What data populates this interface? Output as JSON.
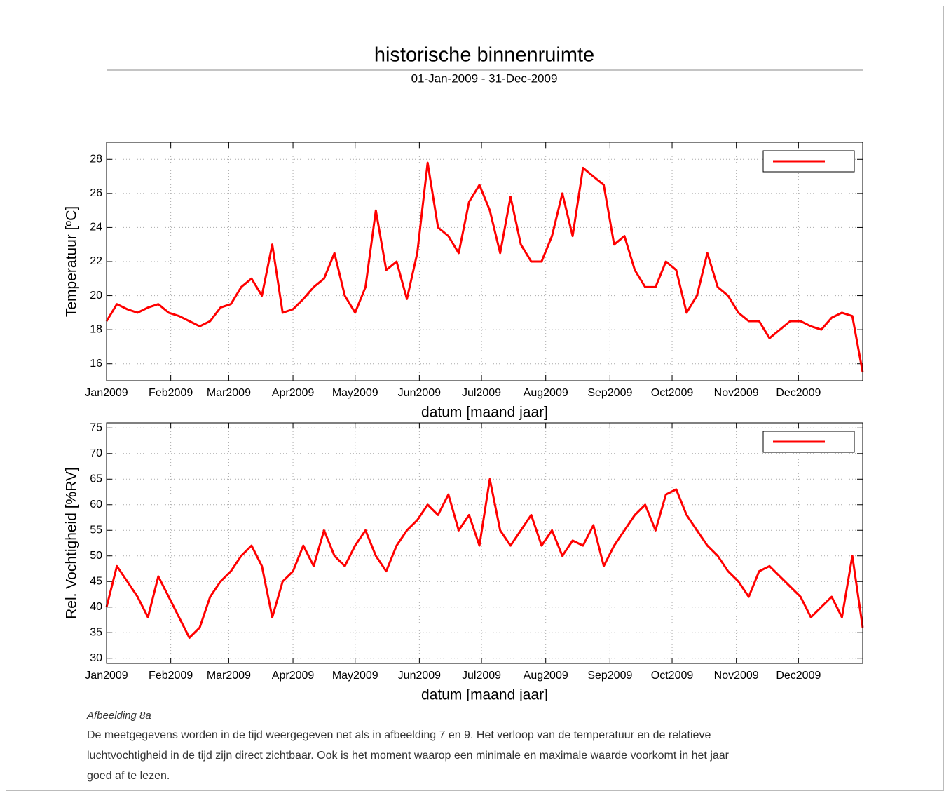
{
  "header": {
    "title": "historische binnenruimte",
    "subtitle": "01-Jan-2009 - 31-Dec-2009"
  },
  "caption": {
    "label": "Afbeelding 8a",
    "lines": [
      "De meetgegevens worden in de tijd weergegeven net als in afbeelding 7 en 9. Het verloop van de temperatuur en de relatieve",
      "luchtvochtigheid in de tijd zijn direct zichtbaar. Ook is het moment waarop een minimale en maximale waarde voorkomt in het jaar",
      "goed af te lezen."
    ]
  },
  "chart_data": [
    {
      "type": "line",
      "xlabel": "datum [maand jaar]",
      "ylabel": "Temperatuur [ºC]",
      "grid": true,
      "legend": "upper right",
      "xlim": [
        1,
        366
      ],
      "xticks": [
        {
          "value": 1,
          "label": "Jan2009"
        },
        {
          "value": 32,
          "label": "Feb2009"
        },
        {
          "value": 60,
          "label": "Mar2009"
        },
        {
          "value": 91,
          "label": "Apr2009"
        },
        {
          "value": 121,
          "label": "May2009"
        },
        {
          "value": 152,
          "label": "Jun2009"
        },
        {
          "value": 182,
          "label": "Jul2009"
        },
        {
          "value": 213,
          "label": "Aug2009"
        },
        {
          "value": 244,
          "label": "Sep2009"
        },
        {
          "value": 274,
          "label": "Oct2009"
        },
        {
          "value": 305,
          "label": "Nov2009"
        },
        {
          "value": 335,
          "label": "Dec2009"
        }
      ],
      "ylim": [
        15,
        29
      ],
      "yticks": [
        16,
        18,
        20,
        22,
        24,
        26,
        28
      ],
      "x": [
        1,
        6,
        11,
        16,
        21,
        26,
        31,
        36,
        41,
        46,
        51,
        56,
        61,
        66,
        71,
        76,
        81,
        86,
        91,
        96,
        101,
        106,
        111,
        116,
        121,
        126,
        131,
        136,
        141,
        146,
        151,
        156,
        161,
        166,
        171,
        176,
        181,
        186,
        191,
        196,
        201,
        206,
        211,
        216,
        221,
        226,
        231,
        236,
        241,
        246,
        251,
        256,
        261,
        266,
        271,
        276,
        281,
        286,
        291,
        296,
        301,
        306,
        311,
        316,
        321,
        326,
        331,
        336,
        341,
        346,
        351,
        356,
        361,
        366
      ],
      "series": [
        {
          "color": "#ff0000",
          "values": [
            18.5,
            19.5,
            19.2,
            19,
            19.3,
            19.5,
            19,
            18.8,
            18.5,
            18.2,
            18.5,
            19.3,
            19.5,
            20.5,
            21,
            20,
            23,
            19,
            19.2,
            19.8,
            20.5,
            21,
            22.5,
            20,
            19,
            20.5,
            25,
            21.5,
            22,
            19.8,
            22.5,
            27.8,
            24,
            23.5,
            22.5,
            25.5,
            26.5,
            25,
            22.5,
            25.8,
            23,
            22,
            22,
            23.5,
            26,
            23.5,
            27.5,
            27,
            26.5,
            23,
            23.5,
            21.5,
            20.5,
            20.5,
            22,
            21.5,
            19,
            20,
            22.5,
            20.5,
            20,
            19,
            18.5,
            18.5,
            17.5,
            18,
            18.5,
            18.5,
            18.2,
            18,
            18.7,
            19,
            18.8,
            15.5
          ]
        }
      ]
    },
    {
      "type": "line",
      "xlabel": "datum [maand jaar]",
      "ylabel": "Rel. Vochtigheid [%RV]",
      "grid": true,
      "legend": "upper right",
      "xlim": [
        1,
        366
      ],
      "xticks": [
        {
          "value": 1,
          "label": "Jan2009"
        },
        {
          "value": 32,
          "label": "Feb2009"
        },
        {
          "value": 60,
          "label": "Mar2009"
        },
        {
          "value": 91,
          "label": "Apr2009"
        },
        {
          "value": 121,
          "label": "May2009"
        },
        {
          "value": 152,
          "label": "Jun2009"
        },
        {
          "value": 182,
          "label": "Jul2009"
        },
        {
          "value": 213,
          "label": "Aug2009"
        },
        {
          "value": 244,
          "label": "Sep2009"
        },
        {
          "value": 274,
          "label": "Oct2009"
        },
        {
          "value": 305,
          "label": "Nov2009"
        },
        {
          "value": 335,
          "label": "Dec2009"
        }
      ],
      "ylim": [
        29,
        76
      ],
      "yticks": [
        30,
        35,
        40,
        45,
        50,
        55,
        60,
        65,
        70,
        75
      ],
      "x": [
        1,
        6,
        11,
        16,
        21,
        26,
        31,
        36,
        41,
        46,
        51,
        56,
        61,
        66,
        71,
        76,
        81,
        86,
        91,
        96,
        101,
        106,
        111,
        116,
        121,
        126,
        131,
        136,
        141,
        146,
        151,
        156,
        161,
        166,
        171,
        176,
        181,
        186,
        191,
        196,
        201,
        206,
        211,
        216,
        221,
        226,
        231,
        236,
        241,
        246,
        251,
        256,
        261,
        266,
        271,
        276,
        281,
        286,
        291,
        296,
        301,
        306,
        311,
        316,
        321,
        326,
        331,
        336,
        341,
        346,
        351,
        356,
        361,
        366
      ],
      "series": [
        {
          "color": "#ff0000",
          "values": [
            40,
            48,
            45,
            42,
            38,
            46,
            42,
            38,
            34,
            36,
            42,
            45,
            47,
            50,
            52,
            48,
            38,
            45,
            47,
            52,
            48,
            55,
            50,
            48,
            52,
            55,
            50,
            47,
            52,
            55,
            57,
            60,
            58,
            62,
            55,
            58,
            52,
            65,
            55,
            52,
            55,
            58,
            52,
            55,
            50,
            53,
            52,
            56,
            48,
            52,
            55,
            58,
            60,
            55,
            62,
            63,
            58,
            55,
            52,
            50,
            47,
            45,
            42,
            47,
            48,
            46,
            44,
            42,
            38,
            40,
            42,
            38,
            50,
            36
          ]
        }
      ]
    }
  ]
}
